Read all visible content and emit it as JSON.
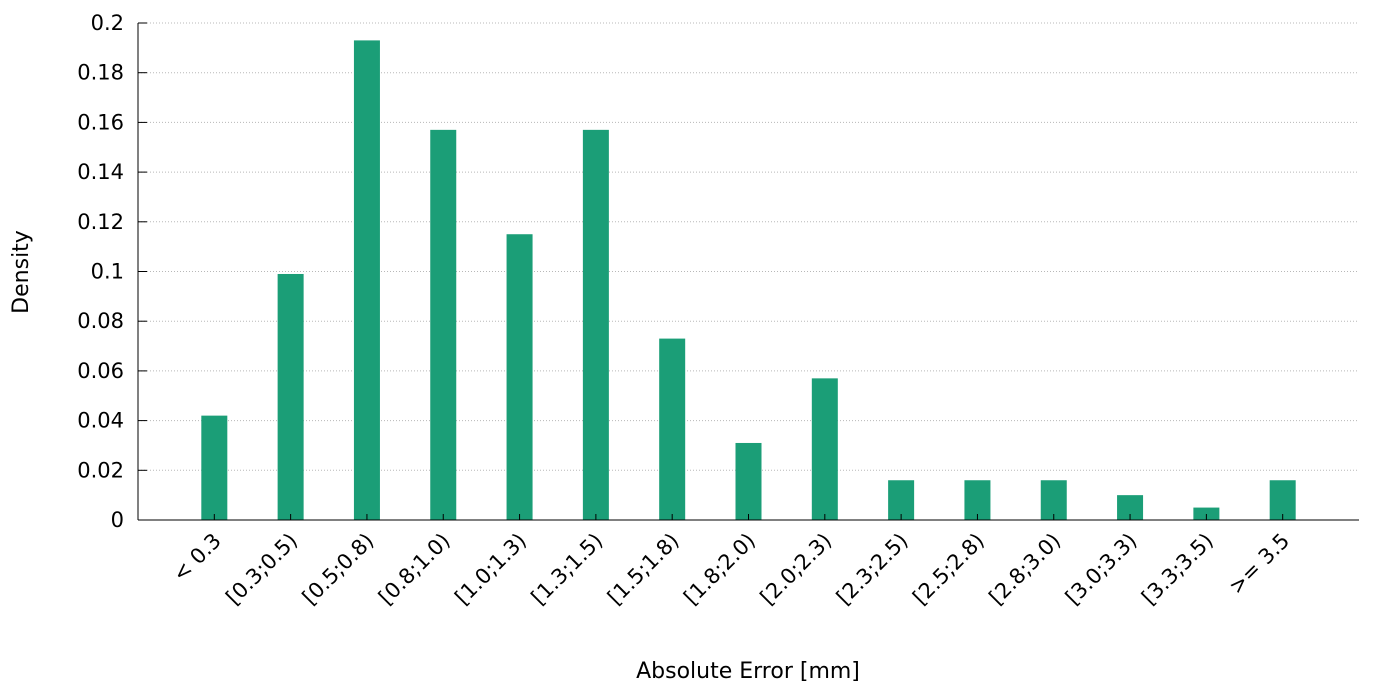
{
  "chart_data": {
    "type": "bar",
    "title": "",
    "xlabel": "Absolute Error [mm]",
    "ylabel": "Density",
    "ylim": [
      0,
      0.2
    ],
    "yticks": [
      "0",
      "0.02",
      "0.04",
      "0.06",
      "0.08",
      "0.1",
      "0.12",
      "0.14",
      "0.16",
      "0.18",
      "0.2"
    ],
    "categories": [
      "< 0.3",
      "[0.3;0.5)",
      "[0.5;0.8)",
      "[0.8;1.0)",
      "[1.0;1.3)",
      "[1.3;1.5)",
      "[1.5;1.8)",
      "[1.8;2.0)",
      "[2.0;2.3)",
      "[2.3;2.5)",
      "[2.5;2.8)",
      "[2.8;3.0)",
      "[3.0;3.3)",
      "[3.3;3.5)",
      ">= 3.5"
    ],
    "values": [
      0.042,
      0.099,
      0.193,
      0.157,
      0.115,
      0.157,
      0.073,
      0.031,
      0.057,
      0.016,
      0.016,
      0.016,
      0.01,
      0.005,
      0.016
    ],
    "grid": true,
    "bar_color": "#1b9e77"
  }
}
